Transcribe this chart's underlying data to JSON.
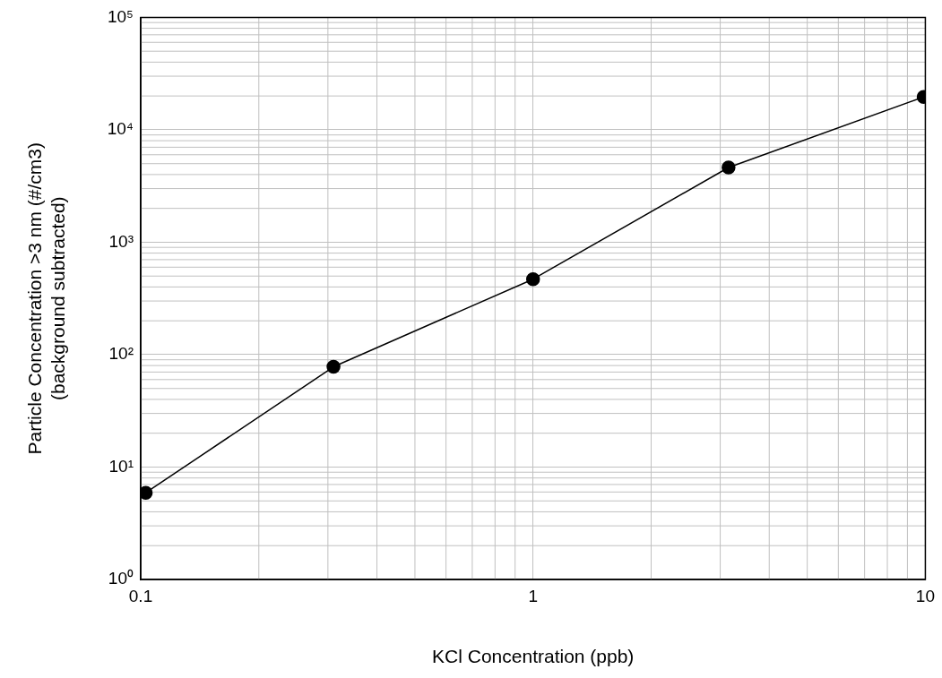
{
  "chart_data": {
    "type": "line",
    "xlabel": "KCl Concentration (ppb)",
    "ylabel": "Particle Concentration >3 nm (#/cm3)\n(background subtracted)",
    "x": [
      0.103,
      0.31,
      1.0,
      3.15,
      9.9
    ],
    "series": [
      {
        "color": "#000000",
        "values": [
          5.9,
          78,
          469,
          4620,
          19600
        ]
      }
    ],
    "log": "xy",
    "xlim": [
      0.1,
      10
    ],
    "ylim": [
      1,
      100000
    ],
    "xticks": [
      0.1,
      1,
      10
    ],
    "yticks": [
      {
        "value": 1,
        "label": "10⁰"
      },
      {
        "value": 10,
        "label": "10¹"
      },
      {
        "value": 100,
        "label": "10²"
      },
      {
        "value": 1000,
        "label": "10³"
      },
      {
        "value": 10000,
        "label": "10⁴"
      },
      {
        "value": 100000,
        "label": "10⁵"
      }
    ],
    "grid": true,
    "legend": false,
    "marker": "circle",
    "line_style": "solid"
  }
}
